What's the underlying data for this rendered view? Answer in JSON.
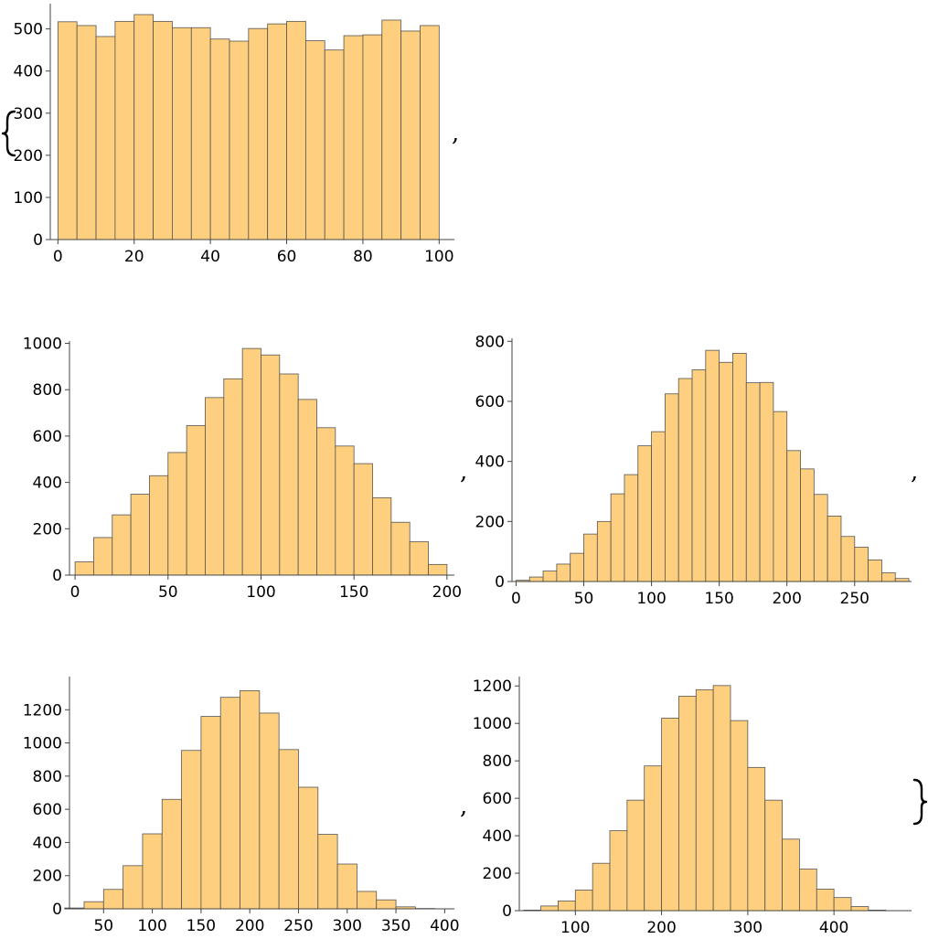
{
  "punctuation": {
    "open_brace": "{",
    "close_brace": "}",
    "comma": ","
  },
  "chart_data": [
    {
      "type": "bar",
      "bin_start": 0,
      "bin_width": 5,
      "values": [
        517,
        508,
        482,
        518,
        534,
        518,
        503,
        503,
        476,
        471,
        501,
        512,
        518,
        472,
        450,
        484,
        486,
        521,
        495,
        508
      ],
      "xlim": [
        -2,
        104
      ],
      "ylim": [
        0,
        560
      ],
      "xticks": [
        0,
        20,
        40,
        60,
        80,
        100
      ],
      "yticks": [
        0,
        100,
        200,
        300,
        400,
        500
      ],
      "xlabel": "",
      "ylabel": "",
      "title": ""
    },
    {
      "type": "bar",
      "bin_start": 0,
      "bin_width": 10,
      "values": [
        57,
        162,
        260,
        349,
        429,
        529,
        645,
        766,
        847,
        978,
        950,
        868,
        758,
        636,
        557,
        481,
        334,
        228,
        144,
        46
      ],
      "xlim": [
        -3,
        204
      ],
      "ylim": [
        0,
        1010
      ],
      "xticks": [
        0,
        50,
        100,
        150,
        200
      ],
      "yticks": [
        0,
        200,
        400,
        600,
        800,
        1000
      ],
      "xlabel": "",
      "ylabel": "",
      "title": ""
    },
    {
      "type": "bar",
      "bin_start": 0,
      "bin_width": 10,
      "values": [
        4,
        15,
        35,
        58,
        94,
        158,
        200,
        292,
        356,
        452,
        499,
        625,
        676,
        705,
        770,
        730,
        760,
        662,
        663,
        566,
        436,
        375,
        290,
        218,
        150,
        114,
        72,
        29,
        10
      ],
      "xlim": [
        -3,
        292
      ],
      "ylim": [
        0,
        810
      ],
      "xticks": [
        0,
        50,
        100,
        150,
        200,
        250
      ],
      "yticks": [
        0,
        200,
        400,
        600,
        800
      ],
      "xlabel": "",
      "ylabel": "",
      "title": ""
    },
    {
      "type": "bar",
      "bin_start": 10,
      "bin_width": 20,
      "values": [
        5,
        43,
        117,
        260,
        452,
        660,
        955,
        1160,
        1275,
        1315,
        1180,
        960,
        733,
        449,
        270,
        105,
        54,
        12,
        2
      ],
      "xlim": [
        15,
        410
      ],
      "ylim": [
        0,
        1400
      ],
      "xticks": [
        50,
        100,
        150,
        200,
        250,
        300,
        350,
        400
      ],
      "yticks": [
        0,
        200,
        400,
        600,
        800,
        1000,
        1200
      ],
      "xlabel": "",
      "ylabel": "",
      "title": ""
    },
    {
      "type": "bar",
      "bin_start": 40,
      "bin_width": 20,
      "values": [
        3,
        25,
        52,
        110,
        253,
        427,
        590,
        773,
        1028,
        1145,
        1180,
        1202,
        1015,
        765,
        590,
        382,
        222,
        115,
        70,
        22,
        3
      ],
      "xlim": [
        35,
        490
      ],
      "ylim": [
        0,
        1250
      ],
      "xticks": [
        100,
        200,
        300,
        400
      ],
      "yticks": [
        0,
        200,
        400,
        600,
        800,
        1000,
        1200
      ],
      "xlabel": "",
      "ylabel": "",
      "title": ""
    }
  ]
}
